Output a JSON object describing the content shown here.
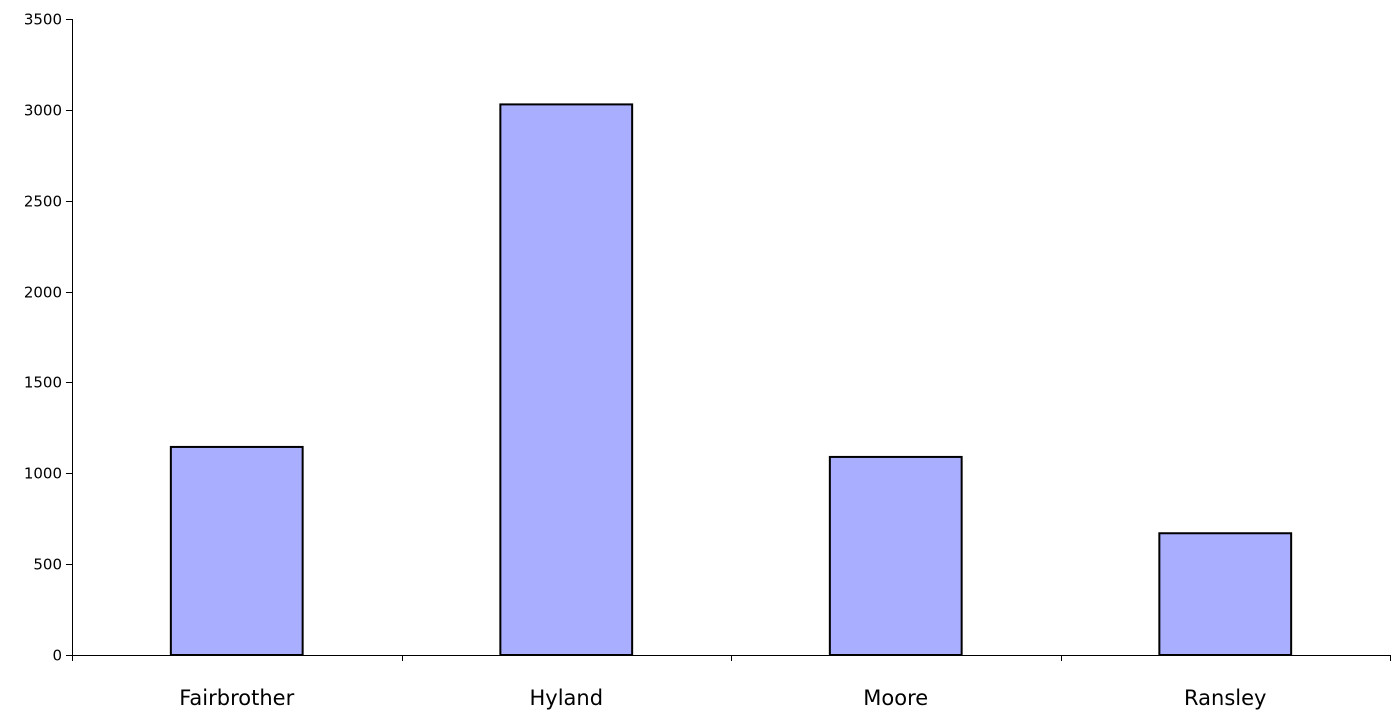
{
  "chart_data": {
    "type": "bar",
    "title": "",
    "xlabel": "",
    "ylabel": "",
    "categories": [
      "Fairbrother",
      "Hyland",
      "Moore",
      "Ransley"
    ],
    "values": [
      1145,
      3030,
      1090,
      670
    ],
    "ylim": [
      0,
      3500
    ],
    "yticks": [
      "0",
      "500",
      "1000",
      "1500",
      "2000",
      "2500",
      "3000",
      "3500"
    ],
    "grid": false,
    "legend": "none",
    "bar_color": "#AAAEFF",
    "bar_edge_color": "#000000"
  }
}
